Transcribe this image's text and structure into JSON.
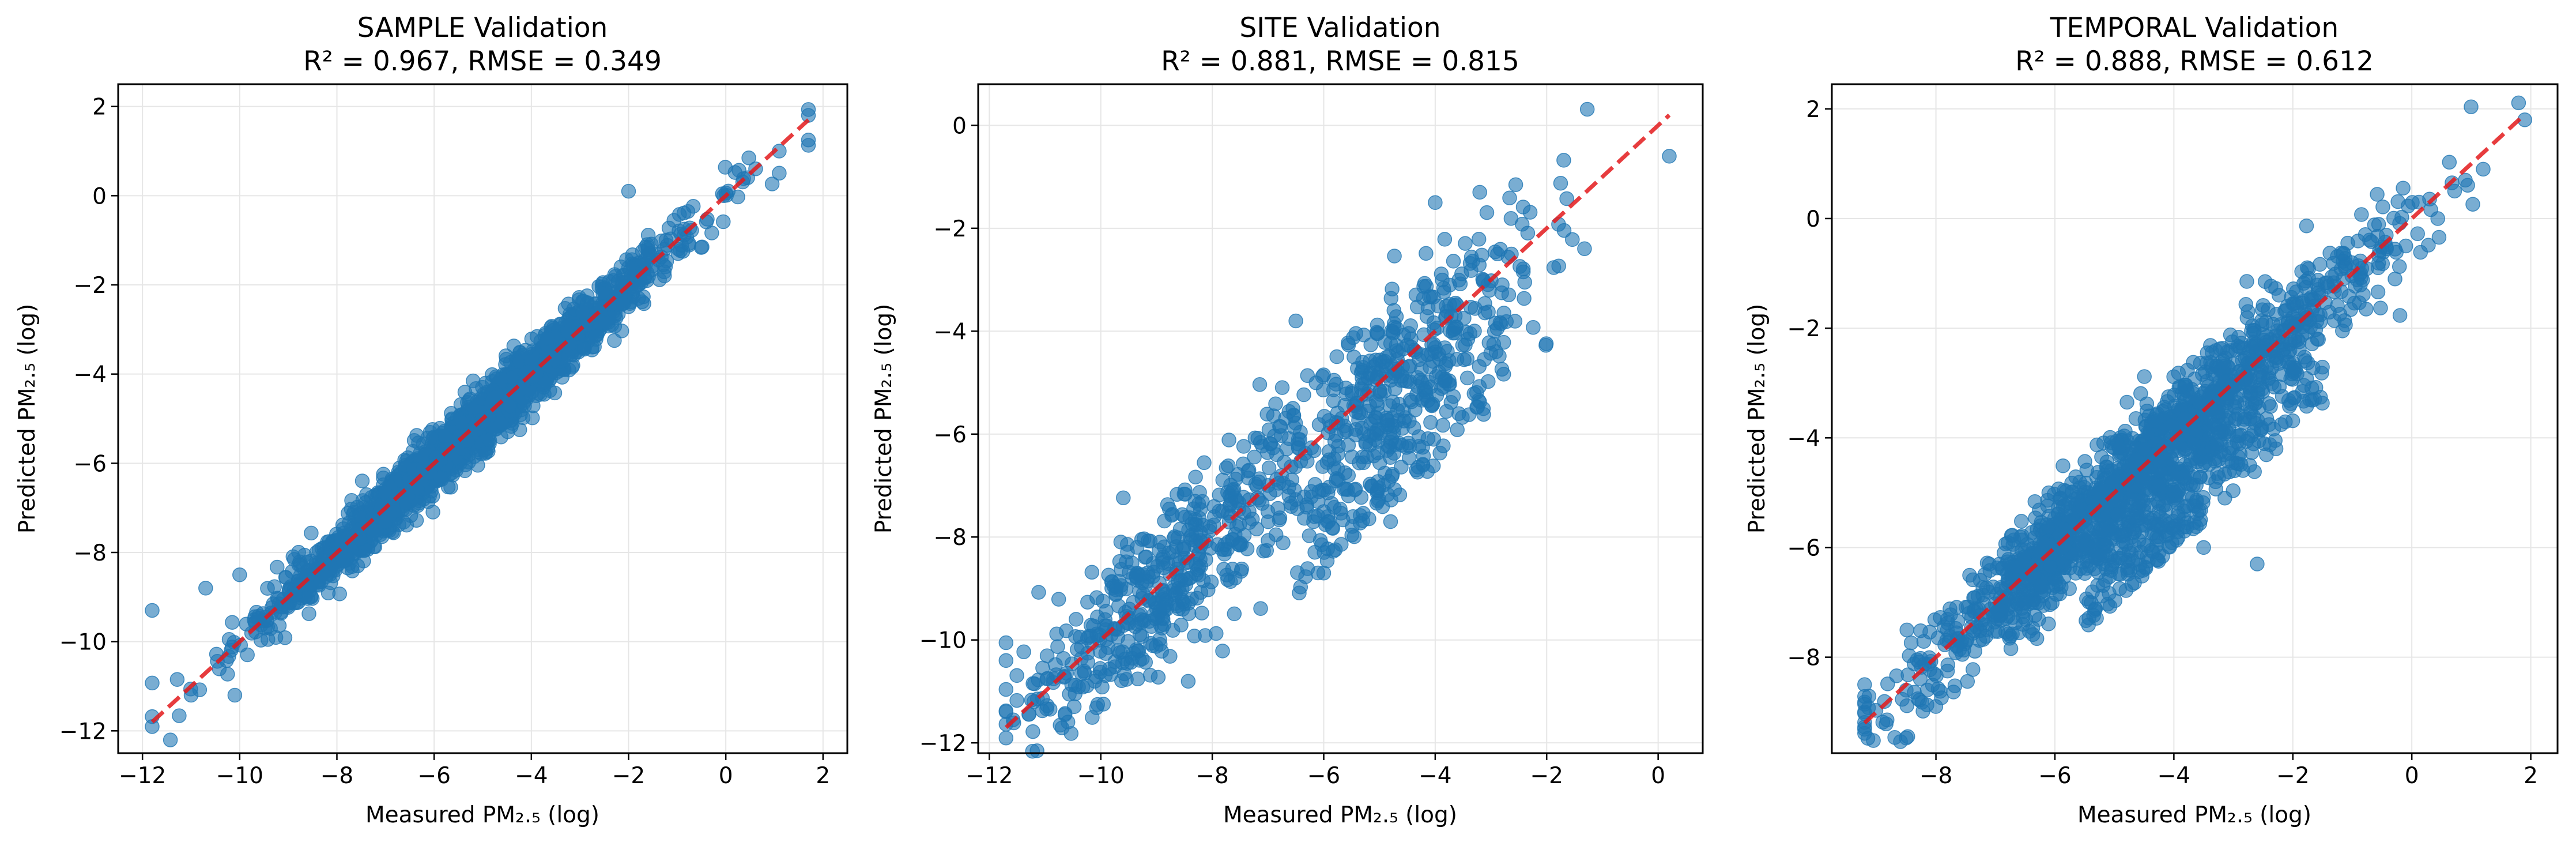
{
  "figure": {
    "background": "#ffffff",
    "point_color": "#1f77b4",
    "line_color": "#e31a1c",
    "grid_color": "#e6e6e6"
  },
  "chart_data": [
    {
      "type": "scatter",
      "title_line1": "SAMPLE Validation",
      "title_line2": "R² = 0.967, RMSE = 0.349",
      "xlabel": "Measured PM₂.₅ (log)",
      "ylabel": "Predicted PM₂.₅ (log)",
      "xlim": [
        -12.5,
        2.5
      ],
      "ylim": [
        -12.5,
        2.5
      ],
      "xticks": [
        -12,
        -10,
        -8,
        -6,
        -4,
        -2,
        0,
        2
      ],
      "yticks": [
        -12,
        -10,
        -8,
        -6,
        -4,
        -2,
        0,
        2
      ],
      "grid": true,
      "reference_line": {
        "style": "dashed",
        "x": [
          -11.8,
          1.7
        ],
        "y": [
          -11.8,
          1.7
        ]
      },
      "points": {
        "r2": 0.967,
        "rmse": 0.349,
        "count": 2000,
        "x_range": [
          -11.8,
          1.7
        ],
        "spread": 0.33,
        "extremes": [
          [
            -11.8,
            -9.3
          ],
          [
            -10.7,
            -8.8
          ],
          [
            -10.0,
            -8.5
          ],
          [
            -10.1,
            -11.2
          ],
          [
            -11.0,
            -11.2
          ],
          [
            1.7,
            1.8
          ],
          [
            1.1,
            1.0
          ],
          [
            -2.0,
            0.1
          ]
        ]
      }
    },
    {
      "type": "scatter",
      "title_line1": "SITE Validation",
      "title_line2": "R² = 0.881, RMSE = 0.815",
      "xlabel": "Measured PM₂.₅ (log)",
      "ylabel": "Predicted PM₂.₅ (log)",
      "xlim": [
        -12.2,
        0.8
      ],
      "ylim": [
        -12.2,
        0.8
      ],
      "xticks": [
        -12,
        -10,
        -8,
        -6,
        -4,
        -2,
        0
      ],
      "yticks": [
        -12,
        -10,
        -8,
        -6,
        -4,
        -2,
        0
      ],
      "grid": true,
      "reference_line": {
        "style": "dashed",
        "x": [
          -11.7,
          0.2
        ],
        "y": [
          -11.7,
          0.2
        ]
      },
      "points": {
        "r2": 0.881,
        "rmse": 0.815,
        "count": 1000,
        "x_range": [
          -11.7,
          0.2
        ],
        "spread": 0.75,
        "extremes": [
          [
            0.2,
            -0.6
          ],
          [
            -6.0,
            -8.7
          ],
          [
            -11.7,
            -10.4
          ],
          [
            -11.2,
            -11.2
          ],
          [
            -3.2,
            -1.3
          ],
          [
            -4.8,
            -7.7
          ],
          [
            -6.5,
            -3.8
          ],
          [
            -4.0,
            -1.5
          ]
        ]
      }
    },
    {
      "type": "scatter",
      "title_line1": "TEMPORAL Validation",
      "title_line2": "R² = 0.888, RMSE = 0.612",
      "xlabel": "Measured PM₂.₅ (log)",
      "ylabel": "Predicted PM₂.₅ (log)",
      "xlim": [
        -9.75,
        2.45
      ],
      "ylim": [
        -9.75,
        2.45
      ],
      "xticks": [
        -8,
        -6,
        -4,
        -2,
        0,
        2
      ],
      "yticks": [
        -8,
        -6,
        -4,
        -2,
        0,
        2
      ],
      "grid": true,
      "reference_line": {
        "style": "dashed",
        "x": [
          -9.2,
          1.9
        ],
        "y": [
          -9.2,
          1.9
        ]
      },
      "points": {
        "r2": 0.888,
        "rmse": 0.612,
        "count": 1800,
        "x_range": [
          -9.2,
          1.9
        ],
        "spread": 0.5,
        "extremes": [
          [
            1.9,
            1.8
          ],
          [
            1.2,
            0.9
          ],
          [
            -9.2,
            -8.5
          ],
          [
            -8.5,
            -8.6
          ],
          [
            -0.1,
            -0.5
          ],
          [
            -2.6,
            -6.3
          ],
          [
            -3.5,
            -6.0
          ],
          [
            0.9,
            0.7
          ]
        ]
      }
    }
  ]
}
